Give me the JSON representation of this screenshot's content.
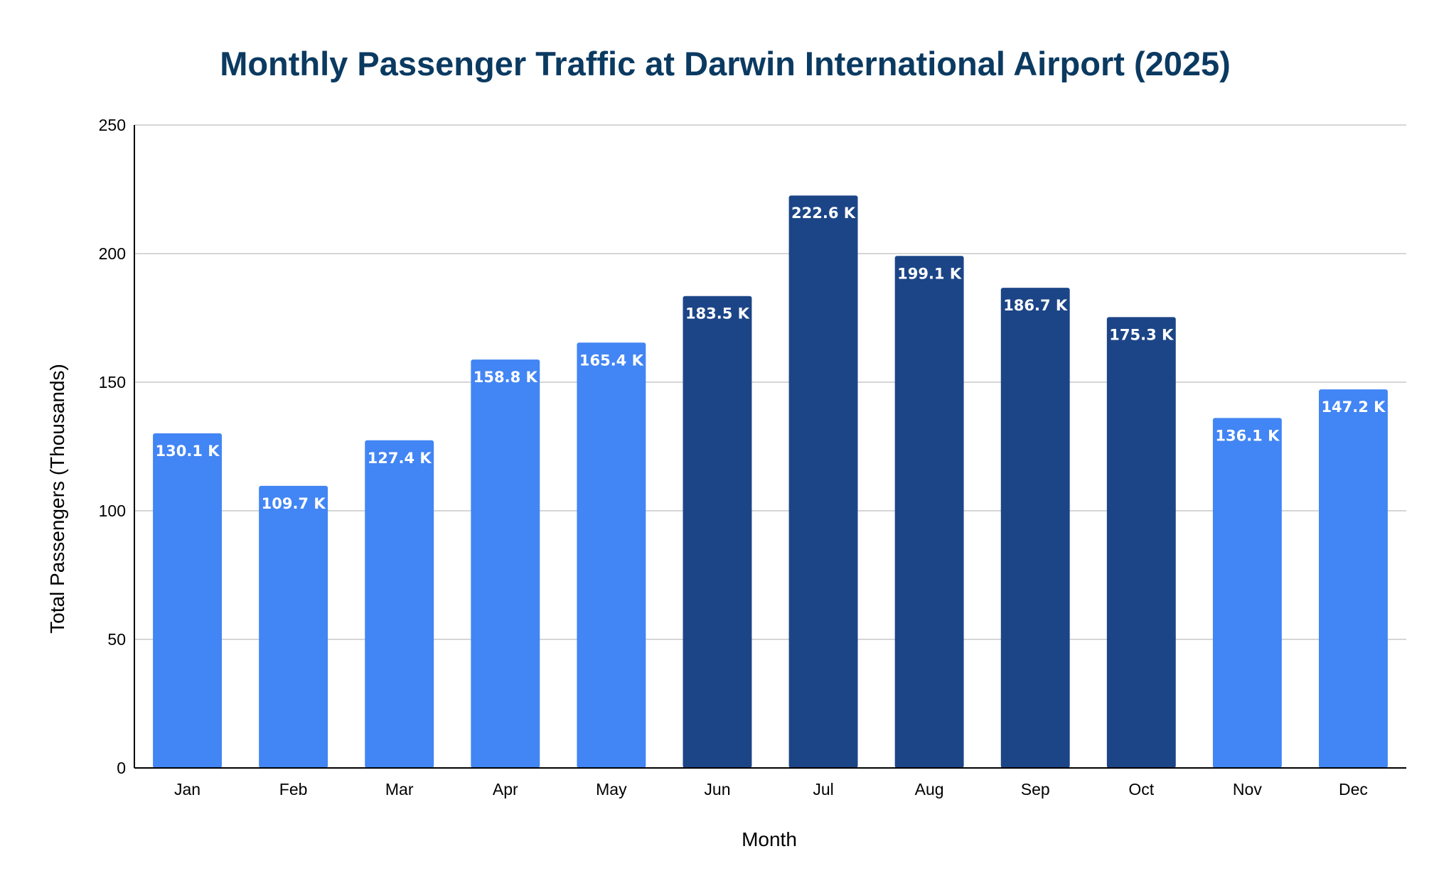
{
  "chart_data": {
    "type": "bar",
    "title": "Monthly Passenger Traffic at Darwin International Airport (2025)",
    "xlabel": "Month",
    "ylabel": "Total Passengers (Thousands)",
    "categories": [
      "Jan",
      "Feb",
      "Mar",
      "Apr",
      "May",
      "Jun",
      "Jul",
      "Aug",
      "Sep",
      "Oct",
      "Nov",
      "Dec"
    ],
    "values": [
      130.1,
      109.7,
      127.4,
      158.8,
      165.4,
      183.5,
      222.6,
      199.1,
      186.7,
      175.3,
      136.1,
      147.2
    ],
    "data_labels": [
      "130.1 K",
      "109.7 K",
      "127.4 K",
      "158.8 K",
      "165.4 K",
      "183.5 K",
      "222.6 K",
      "199.1 K",
      "186.7 K",
      "175.3 K",
      "136.1 K",
      "147.2 K"
    ],
    "highlighted": [
      false,
      false,
      false,
      false,
      false,
      true,
      true,
      true,
      true,
      true,
      false,
      false
    ],
    "ylim": [
      0,
      250
    ],
    "yticks": [
      "0",
      "50",
      "100",
      "150",
      "200",
      "250"
    ],
    "grid": true,
    "legend": "none",
    "colors": {
      "bar": "#4285f4",
      "bar_highlight": "#1c4587",
      "title": "#0b3a61"
    }
  }
}
